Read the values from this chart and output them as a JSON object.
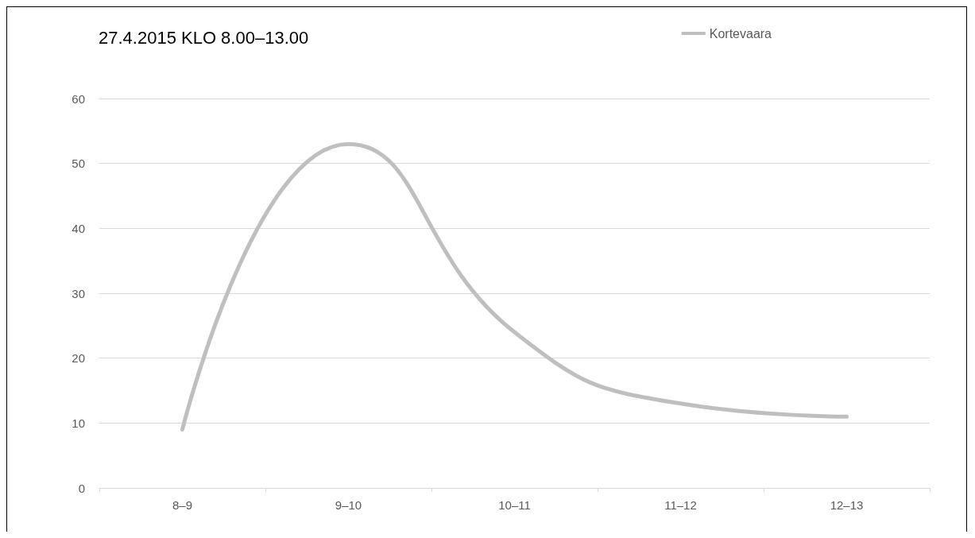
{
  "chart_data": {
    "type": "line",
    "title": "27.4.2015 KLO 8.00–13.00",
    "categories": [
      "8–9",
      "9–10",
      "10–11",
      "11–12",
      "12–13"
    ],
    "series": [
      {
        "name": "Kortevaara",
        "color": "#bfbfbf",
        "values": [
          9,
          53,
          24,
          13,
          11
        ]
      }
    ],
    "ylim": [
      0,
      60
    ],
    "yticks": [
      0,
      10,
      20,
      30,
      40,
      50,
      60
    ],
    "grid": "y",
    "legend": "top right",
    "marker": "none",
    "line_style": "solid"
  }
}
